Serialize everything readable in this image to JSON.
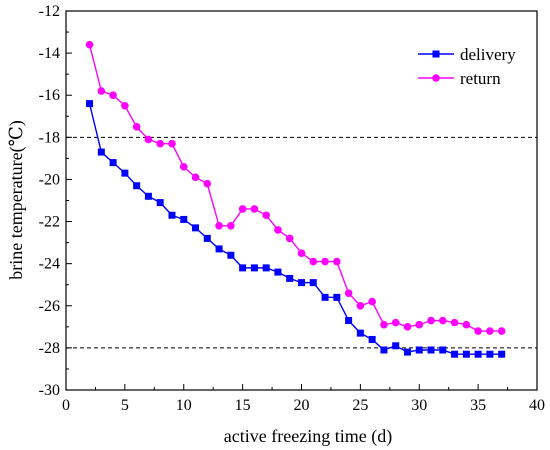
{
  "chart_data": {
    "type": "line",
    "xlabel": "active freezing time (d)",
    "ylabel": "brine temperature(℃)",
    "xlim": [
      0,
      40
    ],
    "ylim": [
      -30,
      -12
    ],
    "xticks": [
      0,
      5,
      10,
      15,
      20,
      25,
      30,
      35,
      40
    ],
    "yticks": [
      -30,
      -28,
      -26,
      -24,
      -22,
      -20,
      -18,
      -16,
      -14,
      -12
    ],
    "grid": false,
    "legend_position": "top-right",
    "reference_lines": [
      -18,
      -28
    ],
    "series": [
      {
        "name": "delivery",
        "color": "#0000FF",
        "marker": "square",
        "x": [
          2,
          3,
          4,
          5,
          6,
          7,
          8,
          9,
          10,
          11,
          12,
          13,
          14,
          15,
          16,
          17,
          18,
          19,
          20,
          21,
          22,
          23,
          24,
          25,
          26,
          27,
          28,
          29,
          30,
          31,
          32,
          33,
          34,
          35,
          36,
          37
        ],
        "y": [
          -16.4,
          -18.7,
          -19.2,
          -19.7,
          -20.3,
          -20.8,
          -21.1,
          -21.7,
          -21.9,
          -22.3,
          -22.8,
          -23.3,
          -23.6,
          -24.2,
          -24.2,
          -24.2,
          -24.4,
          -24.7,
          -24.9,
          -24.9,
          -25.6,
          -25.6,
          -26.7,
          -27.3,
          -27.6,
          -28.1,
          -27.9,
          -28.2,
          -28.1,
          -28.1,
          -28.1,
          -28.3,
          -28.3,
          -28.3,
          -28.3,
          -28.3
        ]
      },
      {
        "name": "return",
        "color": "#FF00FF",
        "marker": "circle",
        "x": [
          2,
          3,
          4,
          5,
          6,
          7,
          8,
          9,
          10,
          11,
          12,
          13,
          14,
          15,
          16,
          17,
          18,
          19,
          20,
          21,
          22,
          23,
          24,
          25,
          26,
          27,
          28,
          29,
          30,
          31,
          32,
          33,
          34,
          35,
          36,
          37
        ],
        "y": [
          -13.6,
          -15.8,
          -16.0,
          -16.5,
          -17.5,
          -18.1,
          -18.3,
          -18.3,
          -19.4,
          -19.9,
          -20.2,
          -22.2,
          -22.2,
          -21.4,
          -21.4,
          -21.7,
          -22.4,
          -22.8,
          -23.5,
          -23.9,
          -23.9,
          -23.9,
          -25.4,
          -26.0,
          -25.8,
          -26.9,
          -26.8,
          -27.0,
          -26.9,
          -26.7,
          -26.7,
          -26.8,
          -26.9,
          -27.2,
          -27.2,
          -27.2
        ]
      }
    ]
  }
}
